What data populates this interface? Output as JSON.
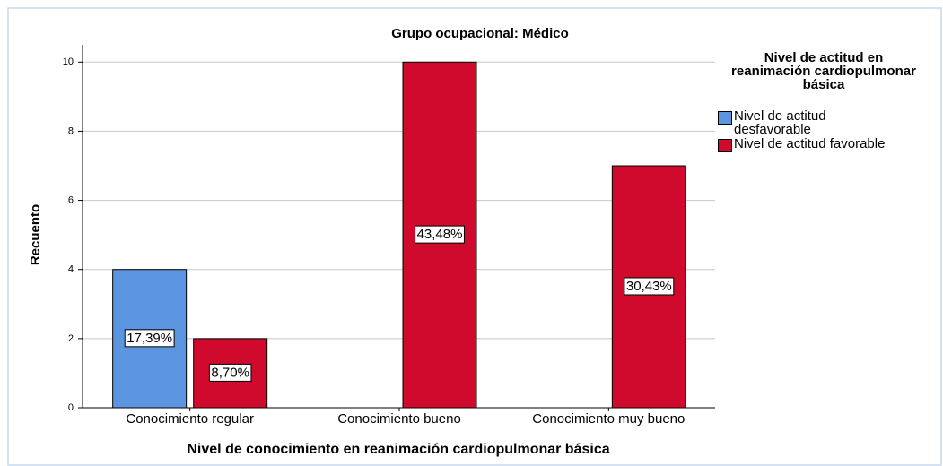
{
  "chart_data": {
    "type": "bar",
    "title": "Grupo ocupacional: Médico",
    "x_label": "Nivel de conocimiento en reanimación cardiopulmonar básica",
    "y_label": "Recuento",
    "legend_title": "Nivel de actitud en reanimación cardiopulmonar básica",
    "categories": [
      "Conocimiento regular",
      "Conocimiento bueno",
      "Conocimiento muy bueno"
    ],
    "series": [
      {
        "name": "Nivel de actitud desfavorable",
        "color": "#5b95df",
        "values": [
          4,
          null,
          null
        ],
        "bar_labels": [
          "17,39%",
          null,
          null
        ]
      },
      {
        "name": "Nivel de actitud favorable",
        "color": "#cf0a2c",
        "values": [
          2,
          10,
          7
        ],
        "bar_labels": [
          "8,70%",
          "43,48%",
          "30,43%"
        ]
      }
    ],
    "ylim": [
      0,
      10.5
    ],
    "yticks": [
      0,
      2,
      4,
      6,
      8,
      10
    ],
    "grid": true,
    "legend": "right"
  }
}
